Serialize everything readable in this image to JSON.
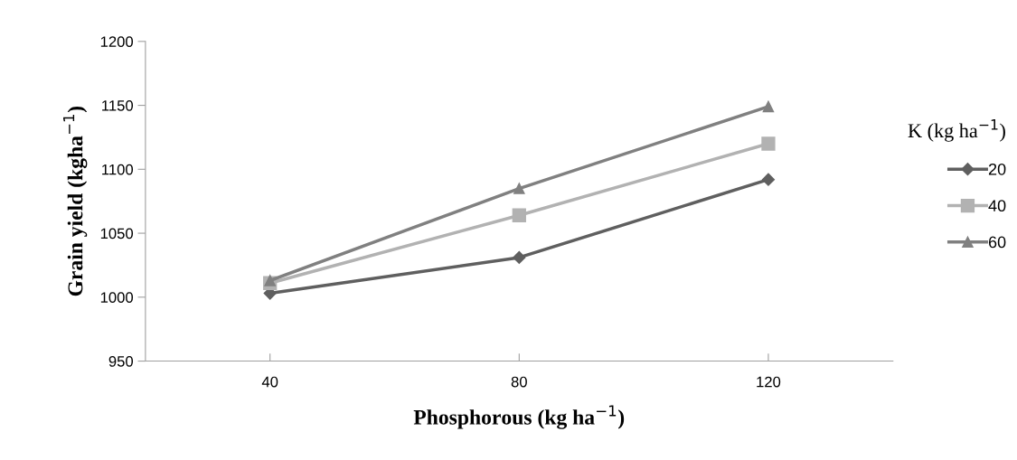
{
  "chart_data": {
    "type": "line",
    "xlabel": "Phosphorous (kg ha$^{−1}$)",
    "ylabel": "Grain yield (kgha$^{−1}$)",
    "legend_title": "K (kg ha$^{−1}$)",
    "categories": [
      "40",
      "80",
      "120"
    ],
    "series": [
      {
        "name": "20",
        "color": "#5f5f5f",
        "marker": "diamond",
        "values": [
          1003,
          1031,
          1092
        ]
      },
      {
        "name": "40",
        "color": "#b2b2b2",
        "marker": "square",
        "values": [
          1011,
          1064,
          1120
        ]
      },
      {
        "name": "60",
        "color": "#808080",
        "marker": "triangle",
        "values": [
          1013,
          1085,
          1149
        ]
      }
    ],
    "ylim": [
      950,
      1200
    ],
    "yticks": [
      950,
      1000,
      1050,
      1100,
      1150,
      1200
    ],
    "grid": false,
    "legend": "right",
    "line_style": "solid"
  }
}
